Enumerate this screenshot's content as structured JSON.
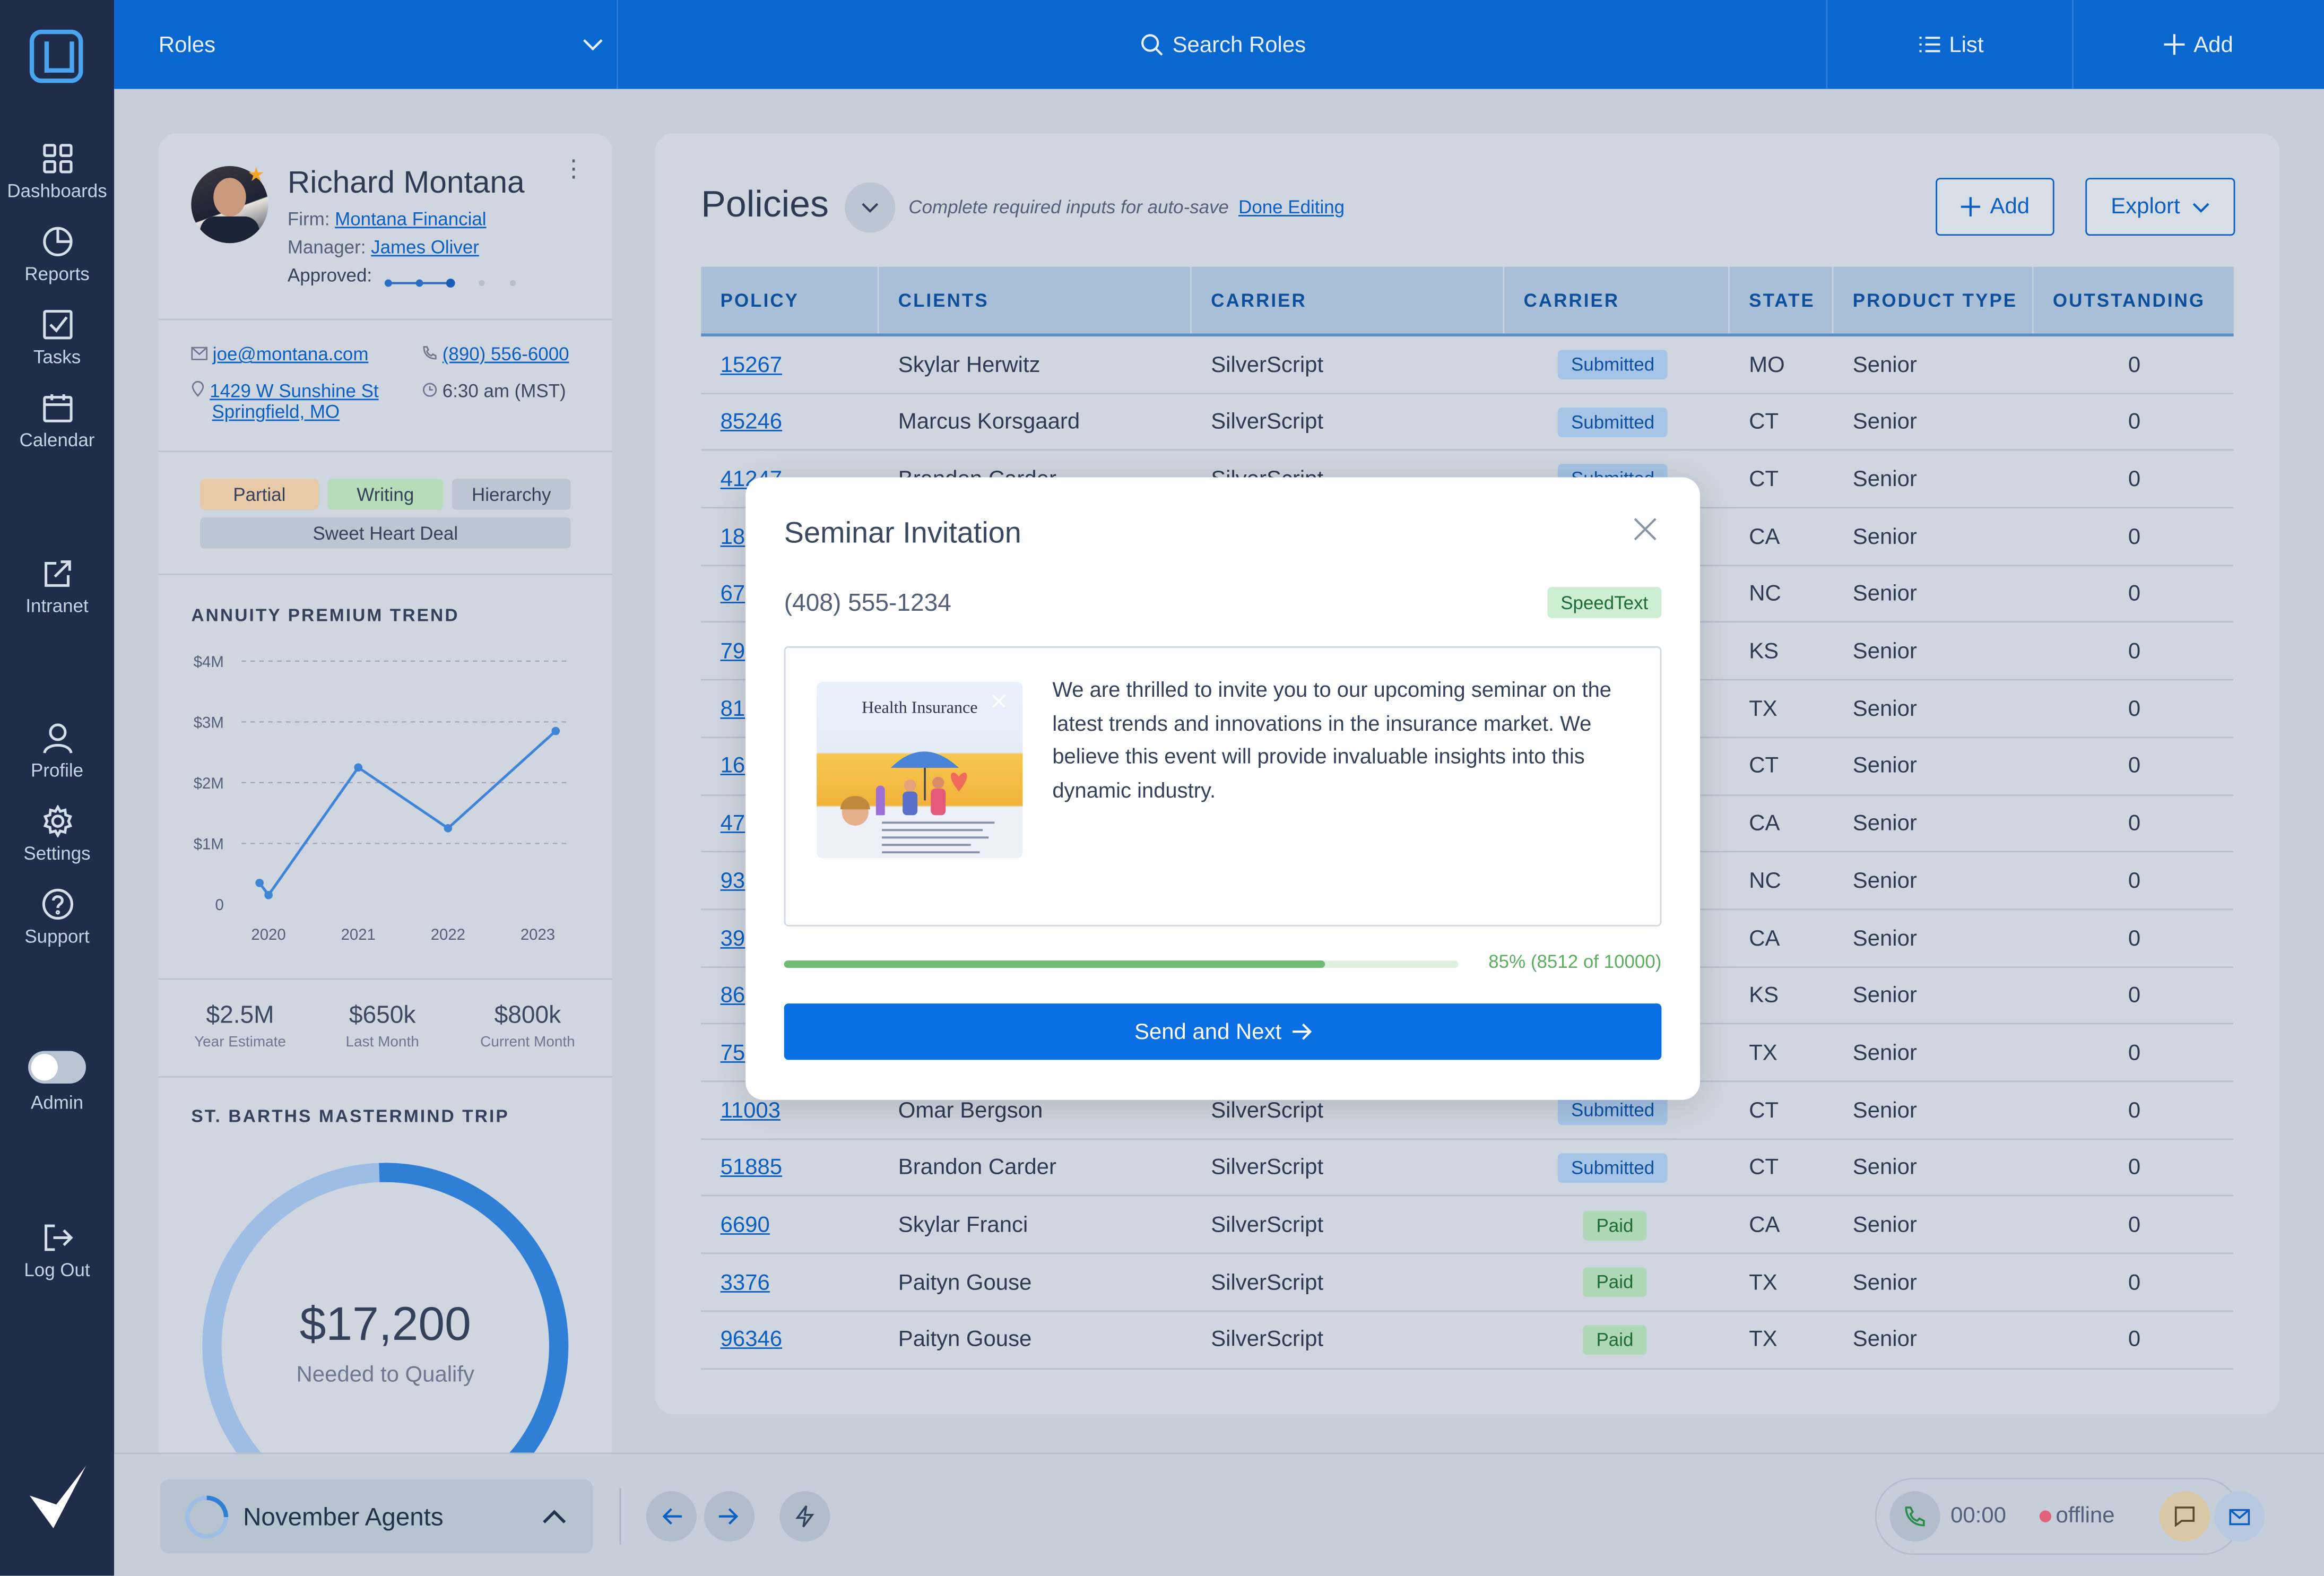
{
  "sidebar": {
    "items": [
      {
        "label": "Dashboards",
        "icon": "dashboards-icon"
      },
      {
        "label": "Reports",
        "icon": "reports-icon"
      },
      {
        "label": "Tasks",
        "icon": "tasks-icon"
      },
      {
        "label": "Calendar",
        "icon": "calendar-icon"
      },
      {
        "label": "Intranet",
        "icon": "intranet-icon"
      },
      {
        "label": "Profile",
        "icon": "profile-icon"
      },
      {
        "label": "Settings",
        "icon": "settings-icon"
      },
      {
        "label": "Support",
        "icon": "support-icon"
      },
      {
        "label": "Admin",
        "icon": "admin-toggle"
      },
      {
        "label": "Log Out",
        "icon": "logout-icon"
      }
    ]
  },
  "topbar": {
    "roles_label": "Roles",
    "search_label": "Search Roles",
    "list_label": "List",
    "add_label": "Add"
  },
  "profile": {
    "name": "Richard Montana",
    "firm_label": "Firm:",
    "firm_value": "Montana Financial",
    "manager_label": "Manager:",
    "manager_value": "James Oliver",
    "approved_label": "Approved:",
    "email": "joe@montana.com",
    "phone": "(890) 556-6000",
    "address_line1": "1429 W Sunshine St",
    "address_line2": "Springfield, MO",
    "local_time": "6:30 am (MST)",
    "tags": [
      "Partial",
      "Writing",
      "Hierarchy",
      "Sweet Heart Deal"
    ],
    "trend_title": "ANNUITY PREMIUM TREND",
    "stats": [
      {
        "value": "$2.5M",
        "label": "Year Estimate"
      },
      {
        "value": "$650k",
        "label": "Last Month"
      },
      {
        "value": "$800k",
        "label": "Current Month"
      }
    ],
    "trip_title": "ST. BARTHS MASTERMIND TRIP",
    "trip_amount": "$17,200",
    "trip_caption": "Needed to Qualify",
    "trip_progress": 0.97
  },
  "chart_data": {
    "type": "line",
    "title": "ANNUITY PREMIUM TREND",
    "x": [
      2019.9,
      2020.0,
      2021.0,
      2022.0,
      2023.2
    ],
    "y": [
      0.35,
      0.15,
      2.25,
      1.25,
      2.85
    ],
    "x_ticks": [
      "2020",
      "2021",
      "2022",
      "2023"
    ],
    "y_ticks": [
      "0",
      "$1M",
      "$2M",
      "$3M",
      "$4M"
    ],
    "ylim": [
      0,
      4
    ],
    "grid": true
  },
  "policies": {
    "title": "Policies",
    "note": "Complete required inputs for auto-save",
    "done_link": "Done Editing",
    "add_label": "Add",
    "export_label": "Explort",
    "columns": [
      "POLICY",
      "CLIENTS",
      "CARRIER",
      "CARRIER",
      "STATE",
      "PRODUCT TYPE",
      "OUTSTANDING"
    ],
    "rows": [
      {
        "policy": "15267",
        "client": "Skylar Herwitz",
        "carrier": "SilverScript",
        "status": "Submitted",
        "state": "MO",
        "product": "Senior",
        "outstanding": "0"
      },
      {
        "policy": "85246",
        "client": "Marcus Korsgaard",
        "carrier": "SilverScript",
        "status": "Submitted",
        "state": "CT",
        "product": "Senior",
        "outstanding": "0"
      },
      {
        "policy": "41247",
        "client": "Brandon Carder",
        "carrier": "SilverScript",
        "status": "Submitted",
        "state": "CT",
        "product": "Senior",
        "outstanding": "0"
      },
      {
        "policy": "18",
        "client": "",
        "carrier": "",
        "status": "",
        "state": "CA",
        "product": "Senior",
        "outstanding": "0"
      },
      {
        "policy": "67",
        "client": "",
        "carrier": "",
        "status": "",
        "state": "NC",
        "product": "Senior",
        "outstanding": "0"
      },
      {
        "policy": "79",
        "client": "",
        "carrier": "",
        "status": "",
        "state": "KS",
        "product": "Senior",
        "outstanding": "0"
      },
      {
        "policy": "81",
        "client": "",
        "carrier": "",
        "status": "",
        "state": "TX",
        "product": "Senior",
        "outstanding": "0"
      },
      {
        "policy": "16",
        "client": "",
        "carrier": "",
        "status": "",
        "state": "CT",
        "product": "Senior",
        "outstanding": "0"
      },
      {
        "policy": "47",
        "client": "",
        "carrier": "",
        "status": "",
        "state": "CA",
        "product": "Senior",
        "outstanding": "0"
      },
      {
        "policy": "93",
        "client": "",
        "carrier": "",
        "status": "",
        "state": "NC",
        "product": "Senior",
        "outstanding": "0"
      },
      {
        "policy": "39",
        "client": "",
        "carrier": "",
        "status": "",
        "state": "CA",
        "product": "Senior",
        "outstanding": "0"
      },
      {
        "policy": "86",
        "client": "",
        "carrier": "",
        "status": "",
        "state": "KS",
        "product": "Senior",
        "outstanding": "0"
      },
      {
        "policy": "75",
        "client": "",
        "carrier": "",
        "status": "",
        "state": "TX",
        "product": "Senior",
        "outstanding": "0"
      },
      {
        "policy": "11003",
        "client": "Omar Bergson",
        "carrier": "SilverScript",
        "status": "Submitted",
        "state": "CT",
        "product": "Senior",
        "outstanding": "0"
      },
      {
        "policy": "51885",
        "client": "Brandon Carder",
        "carrier": "SilverScript",
        "status": "Submitted",
        "state": "CT",
        "product": "Senior",
        "outstanding": "0"
      },
      {
        "policy": "6690",
        "client": "Skylar Franci",
        "carrier": "SilverScript",
        "status": "Paid",
        "state": "CA",
        "product": "Senior",
        "outstanding": "0"
      },
      {
        "policy": "3376",
        "client": "Paityn Gouse",
        "carrier": "SilverScript",
        "status": "Paid",
        "state": "TX",
        "product": "Senior",
        "outstanding": "0"
      },
      {
        "policy": "96346",
        "client": "Paityn Gouse",
        "carrier": "SilverScript",
        "status": "Paid",
        "state": "TX",
        "product": "Senior",
        "outstanding": "0"
      }
    ]
  },
  "modal": {
    "title": "Seminar Invitation",
    "phone": "(408) 555-1234",
    "tag": "SpeedText",
    "image_title": "Health Insurance",
    "message": "We are thrilled to invite you to our upcoming seminar on the latest trends and innovations in the insurance market. We believe this event will provide invaluable insights into this dynamic industry.",
    "progress": 0.85,
    "progress_text": "85% (8512 of 10000)",
    "send_label": "Send and Next"
  },
  "bottombar": {
    "group_label": "November Agents",
    "timer": "00:00",
    "status": "offline"
  },
  "colors": {
    "primary": "#0b67d0",
    "sidebar": "#1f2d4b",
    "submitted_badge": "#a6c4e6",
    "paid_badge": "#aed7b6",
    "progress": "#6fbb72",
    "offline": "#e0637a"
  }
}
